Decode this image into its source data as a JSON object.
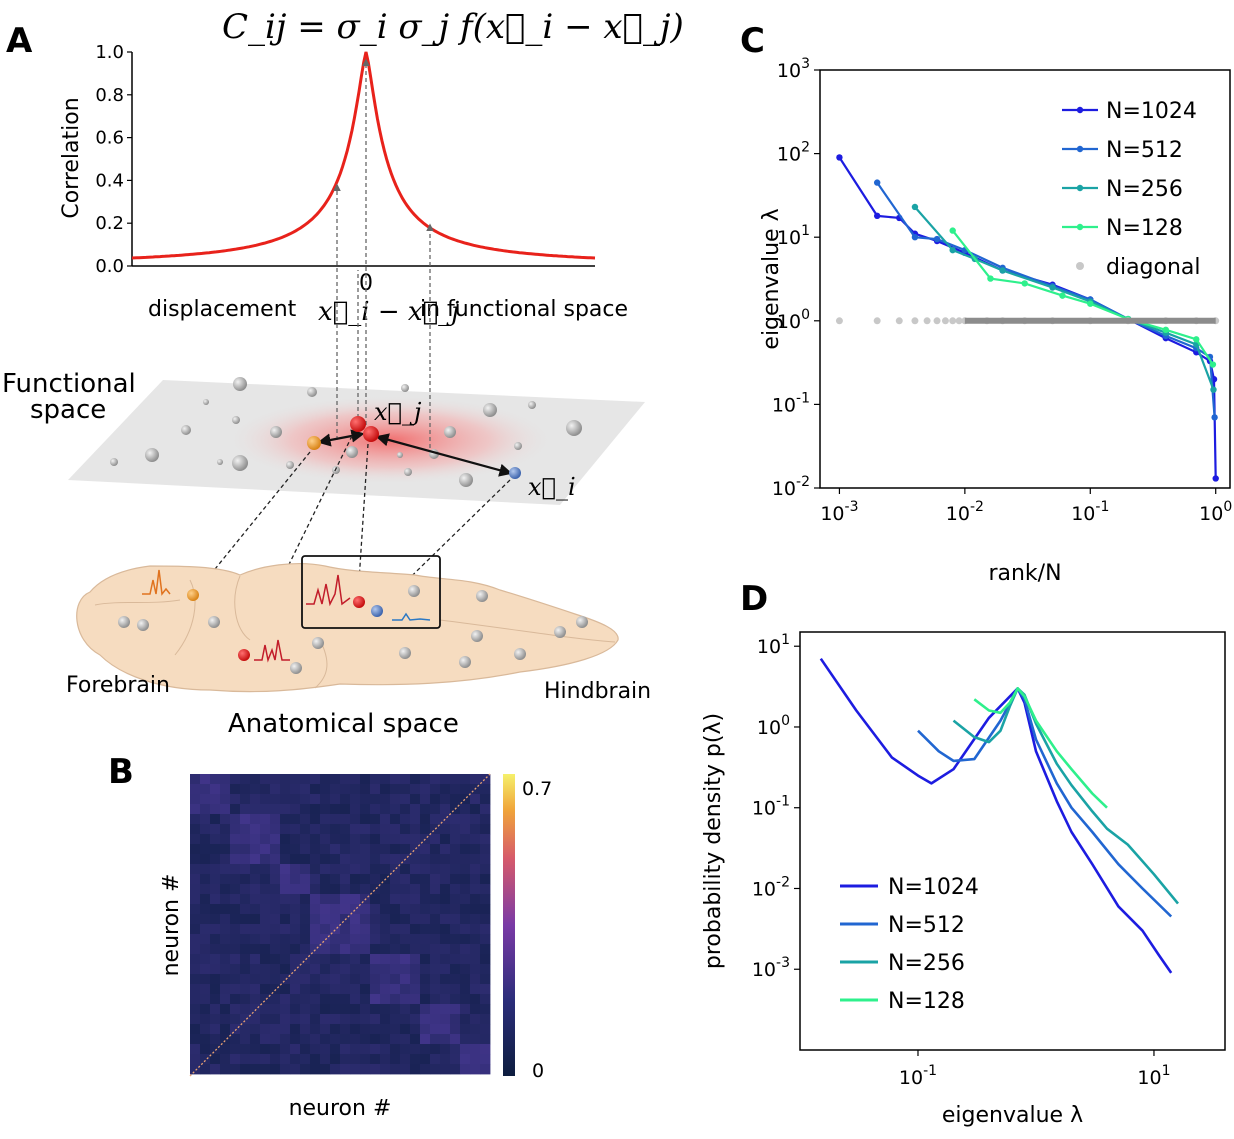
{
  "panels": {
    "a": "A",
    "b": "B",
    "c": "C",
    "d": "D"
  },
  "colors": {
    "red": "#e8221b",
    "n1024": "#1d1ce0",
    "n512": "#2166d1",
    "n256": "#1aa3a5",
    "n128": "#2ef08c",
    "diagonal": "#c8c8c8",
    "brain_fill": "#f6dcc0",
    "brain_edge": "#d9b99a",
    "plane_fill": "#e6e6e6",
    "orange": "#ee9a2a",
    "blue": "#5b82c7"
  },
  "panel_a": {
    "equation": "C_ij = σ_i σ_j f(x⃗_i − x⃗_j)",
    "ylabel": "Correlation",
    "yticks": [
      "0.0",
      "0.2",
      "0.4",
      "0.6",
      "0.8",
      "1.0"
    ],
    "zero_label": "0",
    "xlabel_left": "displacement",
    "xlabel_mid": "x⃗_i − x⃗_j",
    "xlabel_right": "in functional space",
    "functional_label_1": "Functional",
    "functional_label_2": "space",
    "xj_label": "x⃗_j",
    "xi_label": "x⃗_i",
    "forebrain": "Forebrain",
    "hindbrain": "Hindbrain",
    "anatomical": "Anatomical space"
  },
  "panel_b": {
    "xlabel": "neuron #",
    "ylabel": "neuron #",
    "cbar_max": "0.7",
    "cbar_min": "0"
  },
  "chart_data": [
    {
      "panel": "A",
      "type": "line",
      "title": "",
      "ylabel": "Correlation",
      "xlabel": "displacement x⃗_i − x⃗_j in functional space",
      "ylim": [
        0,
        1.0
      ],
      "x": [
        -1.0,
        -0.8,
        -0.6,
        -0.4,
        -0.3,
        -0.2,
        -0.15,
        -0.1,
        -0.05,
        -0.02,
        0,
        0.02,
        0.05,
        0.1,
        0.15,
        0.2,
        0.3,
        0.4,
        0.6,
        0.8,
        1.0
      ],
      "values": [
        0.02,
        0.04,
        0.08,
        0.18,
        0.26,
        0.42,
        0.52,
        0.66,
        0.83,
        0.94,
        1.0,
        0.94,
        0.83,
        0.66,
        0.52,
        0.42,
        0.26,
        0.18,
        0.08,
        0.04,
        0.02
      ]
    },
    {
      "panel": "C",
      "type": "line",
      "title": "",
      "xlabel": "rank/N",
      "ylabel": "eigenvalue λ",
      "xscale": "log",
      "yscale": "log",
      "xlim": [
        0.0007,
        1.3
      ],
      "ylim": [
        0.01,
        1000
      ],
      "xticks": [
        "10^-3",
        "10^-2",
        "10^-1",
        "10^0"
      ],
      "yticks": [
        "10^-2",
        "10^-1",
        "10^0",
        "10^1",
        "10^2",
        "10^3"
      ],
      "legend": "top-right",
      "series": [
        {
          "name": "N=1024",
          "color_key": "n1024",
          "x": [
            0.001,
            0.002,
            0.003,
            0.004,
            0.006,
            0.01,
            0.02,
            0.05,
            0.1,
            0.2,
            0.4,
            0.7,
            0.9,
            0.97,
            1.0
          ],
          "y": [
            90,
            18,
            17,
            11,
            9,
            6.5,
            4,
            2.7,
            1.8,
            1.05,
            0.62,
            0.42,
            0.33,
            0.2,
            0.013
          ]
        },
        {
          "name": "N=512",
          "color_key": "n512",
          "x": [
            0.002,
            0.004,
            0.006,
            0.01,
            0.02,
            0.05,
            0.1,
            0.2,
            0.4,
            0.7,
            0.9,
            0.98
          ],
          "y": [
            45,
            10,
            9.5,
            7,
            4.3,
            2.6,
            1.8,
            1.05,
            0.66,
            0.47,
            0.37,
            0.07
          ]
        },
        {
          "name": "N=256",
          "color_key": "n256",
          "x": [
            0.004,
            0.008,
            0.012,
            0.02,
            0.05,
            0.1,
            0.2,
            0.4,
            0.7,
            0.96
          ],
          "y": [
            23,
            7,
            5.5,
            4,
            2.5,
            1.7,
            1.05,
            0.72,
            0.52,
            0.15
          ]
        },
        {
          "name": "N=128",
          "color_key": "n128",
          "x": [
            0.008,
            0.016,
            0.03,
            0.06,
            0.1,
            0.2,
            0.4,
            0.7,
            0.95
          ],
          "y": [
            12,
            3.2,
            2.8,
            2.0,
            1.6,
            1.05,
            0.78,
            0.6,
            0.3
          ]
        },
        {
          "name": "diagonal",
          "color_key": "diagonal",
          "marker": "dot",
          "x": [
            0.001,
            0.002,
            0.003,
            0.004,
            0.005,
            0.006,
            0.007,
            0.008,
            0.009,
            0.01,
            0.015,
            0.02,
            0.03,
            0.05,
            0.1,
            0.2,
            0.4,
            0.7,
            1.0
          ],
          "y": [
            1,
            1,
            1,
            1,
            1,
            1,
            1,
            1,
            1,
            1,
            1,
            1,
            1,
            1,
            1,
            1,
            1,
            1,
            1
          ]
        }
      ]
    },
    {
      "panel": "D",
      "type": "line",
      "title": "",
      "xlabel": "eigenvalue λ",
      "ylabel": "probability density p(λ)",
      "xscale": "log",
      "yscale": "log",
      "xlim": [
        0.01,
        40
      ],
      "ylim": [
        0.0001,
        15
      ],
      "xticks": [
        "10^-1",
        "10^1"
      ],
      "yticks": [
        "10^-3",
        "10^-2",
        "10^-1",
        "10^0",
        "10^1"
      ],
      "legend": "bottom-left",
      "series": [
        {
          "name": "N=1024",
          "color_key": "n1024",
          "x": [
            0.015,
            0.03,
            0.06,
            0.1,
            0.13,
            0.2,
            0.4,
            0.7,
            0.8,
            1.0,
            1.5,
            2,
            3,
            5,
            8,
            11,
            14
          ],
          "y": [
            7,
            1.6,
            0.42,
            0.25,
            0.2,
            0.3,
            1.3,
            3.0,
            2.0,
            0.5,
            0.12,
            0.05,
            0.02,
            0.006,
            0.003,
            0.0015,
            0.0009
          ]
        },
        {
          "name": "N=512",
          "color_key": "n512",
          "x": [
            0.1,
            0.15,
            0.2,
            0.3,
            0.5,
            0.7,
            0.8,
            1.0,
            1.5,
            2,
            3,
            5,
            8,
            14
          ],
          "y": [
            0.9,
            0.5,
            0.38,
            0.4,
            1.2,
            3.0,
            2.2,
            0.7,
            0.2,
            0.1,
            0.05,
            0.02,
            0.01,
            0.0045
          ]
        },
        {
          "name": "N=256",
          "color_key": "n256",
          "x": [
            0.2,
            0.3,
            0.4,
            0.5,
            0.6,
            0.7,
            0.8,
            1.0,
            1.5,
            2,
            3,
            4,
            6,
            10,
            16
          ],
          "y": [
            1.2,
            0.75,
            0.65,
            0.9,
            1.8,
            3.0,
            2.5,
            1.1,
            0.35,
            0.19,
            0.09,
            0.055,
            0.035,
            0.015,
            0.0065
          ]
        },
        {
          "name": "N=128",
          "color_key": "n128",
          "x": [
            0.3,
            0.4,
            0.5,
            0.6,
            0.7,
            0.8,
            1.0,
            1.5,
            2,
            3,
            4
          ],
          "y": [
            2.2,
            1.6,
            1.5,
            2.0,
            3.0,
            2.4,
            1.2,
            0.5,
            0.3,
            0.15,
            0.1
          ]
        }
      ]
    }
  ]
}
